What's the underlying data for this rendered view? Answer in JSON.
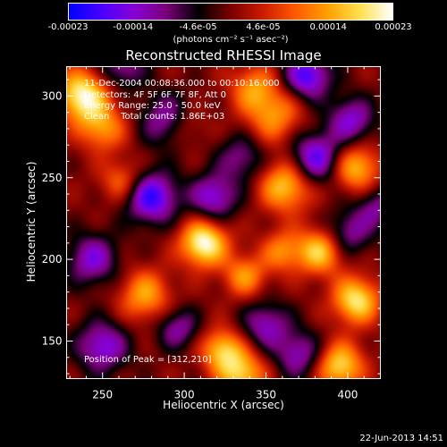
{
  "colorbar": {
    "tick_labels": [
      "-0.00023",
      "-0.00014",
      "-4.6e-05",
      "4.6e-05",
      "0.00014",
      "0.00023"
    ],
    "units": "(photons cm⁻² s⁻¹ asec⁻²)",
    "colormap": [
      "#0000ff",
      "#4a00ff",
      "#8800d8",
      "#7b007b",
      "#000000",
      "#7a0000",
      "#cc1c00",
      "#ff5a00",
      "#ffa000",
      "#ffe050",
      "#ffffff"
    ]
  },
  "chart_data": {
    "type": "heatmap",
    "title": "Reconstructed RHESSI Image",
    "xlabel": "Heliocentric X (arcsec)",
    "ylabel": "Heliocentric Y (arcsec)",
    "xlim": [
      228,
      420
    ],
    "ylim": [
      127,
      318
    ],
    "x_ticks": [
      250,
      300,
      350,
      400
    ],
    "y_ticks": [
      150,
      200,
      250,
      300
    ],
    "value_range": [
      -0.00023,
      0.00023
    ],
    "peak": [
      312,
      210
    ],
    "annotations": [
      "11-Dec-2004 00:08:36.000 to 00:10:16.000",
      "Detectors: 4F 5F 6F 7F 8F, Att 0",
      "Energy Range: 25.0 - 50.0 keV",
      "Clean    Total counts: 1.86E+03",
      "Position of Peak = [312,210]"
    ],
    "blobs": [
      {
        "x": 312,
        "y": 210,
        "amp": 1.0,
        "w": 10
      },
      {
        "x": 238,
        "y": 300,
        "amp": 0.95,
        "w": 11
      },
      {
        "x": 355,
        "y": 288,
        "amp": 0.55,
        "w": 12
      },
      {
        "x": 362,
        "y": 245,
        "amp": 0.75,
        "w": 11
      },
      {
        "x": 405,
        "y": 256,
        "amp": 0.7,
        "w": 10
      },
      {
        "x": 383,
        "y": 205,
        "amp": 0.75,
        "w": 10
      },
      {
        "x": 360,
        "y": 205,
        "amp": 0.5,
        "w": 9
      },
      {
        "x": 405,
        "y": 175,
        "amp": 0.85,
        "w": 10
      },
      {
        "x": 323,
        "y": 145,
        "amp": 0.7,
        "w": 9
      },
      {
        "x": 276,
        "y": 178,
        "amp": 0.6,
        "w": 11
      },
      {
        "x": 335,
        "y": 130,
        "amp": 0.75,
        "w": 10
      },
      {
        "x": 395,
        "y": 135,
        "amp": 0.8,
        "w": 10
      },
      {
        "x": 250,
        "y": 280,
        "amp": 0.55,
        "w": 10
      },
      {
        "x": 342,
        "y": 305,
        "amp": 0.5,
        "w": 10
      },
      {
        "x": 300,
        "y": 282,
        "amp": 0.35,
        "w": 9
      },
      {
        "x": 262,
        "y": 248,
        "amp": 0.45,
        "w": 9
      },
      {
        "x": 337,
        "y": 190,
        "amp": 0.55,
        "w": 9
      },
      {
        "x": 380,
        "y": 262,
        "amp": -0.75,
        "w": 11
      },
      {
        "x": 280,
        "y": 238,
        "amp": -0.85,
        "w": 11
      },
      {
        "x": 318,
        "y": 238,
        "amp": -0.65,
        "w": 10
      },
      {
        "x": 375,
        "y": 312,
        "amp": -0.8,
        "w": 10
      },
      {
        "x": 402,
        "y": 285,
        "amp": -0.6,
        "w": 10
      },
      {
        "x": 290,
        "y": 285,
        "amp": -0.6,
        "w": 11
      },
      {
        "x": 350,
        "y": 160,
        "amp": -0.55,
        "w": 10
      },
      {
        "x": 244,
        "y": 200,
        "amp": -0.6,
        "w": 11
      },
      {
        "x": 400,
        "y": 216,
        "amp": -0.5,
        "w": 10
      },
      {
        "x": 250,
        "y": 147,
        "amp": -0.65,
        "w": 11
      },
      {
        "x": 370,
        "y": 142,
        "amp": -0.55,
        "w": 10
      },
      {
        "x": 296,
        "y": 158,
        "amp": -0.5,
        "w": 9
      },
      {
        "x": 335,
        "y": 262,
        "amp": -0.45,
        "w": 10
      },
      {
        "x": 262,
        "y": 318,
        "amp": -0.5,
        "w": 10
      },
      {
        "x": 418,
        "y": 232,
        "amp": -0.45,
        "w": 9
      }
    ]
  },
  "footer": {
    "timestamp": "22-Jun-2013 14:51"
  }
}
